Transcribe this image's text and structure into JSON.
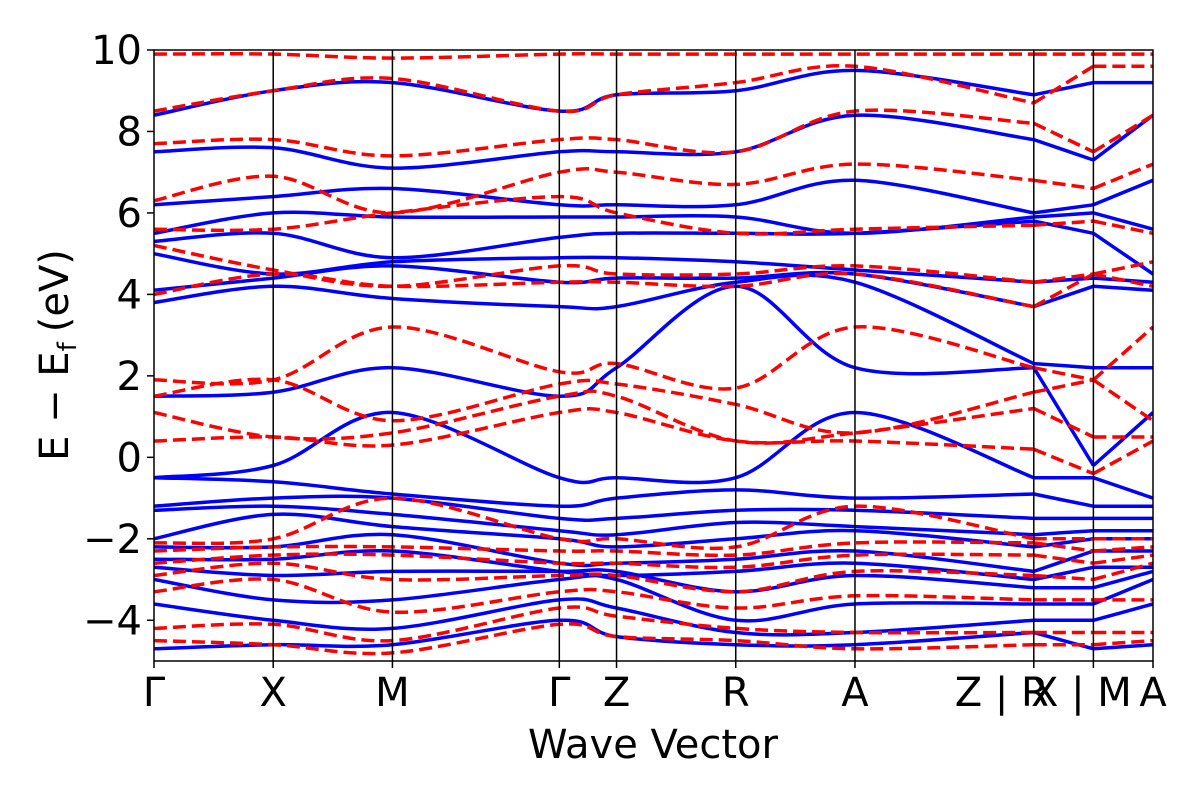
{
  "chart_data": {
    "type": "line",
    "xlabel": "Wave Vector",
    "ylabel": "E − E",
    "ylabel_subscript": "f",
    "ylabel_unit": "(eV)",
    "ylim": [
      -5,
      10
    ],
    "yticks": [
      -4,
      -2,
      0,
      2,
      4,
      6,
      8,
      10
    ],
    "ytick_labels": [
      "−4",
      "−2",
      "0",
      "2",
      "4",
      "6",
      "8",
      "10"
    ],
    "x": [
      0,
      1,
      2,
      3.4,
      3.88,
      4.88,
      5.88,
      7.38,
      7.88,
      8.38
    ],
    "xlim": [
      0,
      8.38
    ],
    "kpoint_labels": [
      "Γ",
      "X",
      "M",
      "Γ",
      "Z",
      "R",
      "A",
      "Z | R",
      "X | M",
      "A"
    ],
    "segment_breaks": [
      7.38,
      7.88
    ],
    "grid": false,
    "series": [
      {
        "line_style": "solid",
        "color": "#0000ff",
        "bands": [
          [
            -4.7,
            -4.6,
            -4.6,
            -4.0,
            -4.4,
            -4.6,
            -4.6,
            -4.3,
            -4.7,
            -4.6
          ],
          [
            -3.6,
            -4.0,
            -4.2,
            -3.5,
            -3.7,
            -4.3,
            -4.3,
            -4.0,
            -4.0,
            -3.6
          ],
          [
            -3.0,
            -3.5,
            -3.5,
            -3.0,
            -3.0,
            -4.0,
            -3.6,
            -3.6,
            -3.6,
            -3.0
          ],
          [
            -2.7,
            -2.9,
            -2.8,
            -2.8,
            -2.8,
            -3.3,
            -2.9,
            -3.2,
            -3.2,
            -2.8
          ],
          [
            -2.5,
            -2.5,
            -2.3,
            -2.8,
            -2.9,
            -2.8,
            -2.6,
            -3.0,
            -2.7,
            -2.7
          ],
          [
            -2.2,
            -2.2,
            -1.9,
            -2.6,
            -2.6,
            -2.5,
            -2.3,
            -2.8,
            -2.3,
            -2.3
          ],
          [
            -2.0,
            -1.4,
            -1.7,
            -2.0,
            -2.2,
            -2.0,
            -1.8,
            -2.2,
            -2.0,
            -2.0
          ],
          [
            -1.3,
            -1.2,
            -1.4,
            -1.8,
            -1.9,
            -1.6,
            -1.7,
            -1.9,
            -1.8,
            -1.8
          ],
          [
            -1.2,
            -1.0,
            -1.0,
            -1.5,
            -1.5,
            -1.3,
            -1.3,
            -1.5,
            -1.5,
            -1.5
          ],
          [
            -0.5,
            -0.6,
            -0.9,
            -1.2,
            -1.0,
            -0.8,
            -1.0,
            -0.9,
            -1.2,
            -1.2
          ],
          [
            -0.5,
            -0.2,
            1.1,
            -0.5,
            -0.5,
            -0.5,
            1.1,
            -0.5,
            -0.5,
            -1.0
          ],
          [
            1.5,
            1.6,
            2.2,
            1.5,
            2.2,
            4.2,
            2.2,
            2.2,
            -0.2,
            1.1
          ],
          [
            3.8,
            4.2,
            3.9,
            3.7,
            3.7,
            4.3,
            4.3,
            2.3,
            2.2,
            2.2
          ],
          [
            4.1,
            4.4,
            4.7,
            4.3,
            4.4,
            4.4,
            4.5,
            3.7,
            4.2,
            4.1
          ],
          [
            5.0,
            4.5,
            4.8,
            4.9,
            4.9,
            4.8,
            4.6,
            4.3,
            4.4,
            4.3
          ],
          [
            5.3,
            5.5,
            4.9,
            5.4,
            5.5,
            5.5,
            5.5,
            5.8,
            5.5,
            4.5
          ],
          [
            5.5,
            6.0,
            5.9,
            5.9,
            5.9,
            5.9,
            5.5,
            5.9,
            6.0,
            5.6
          ],
          [
            6.2,
            6.4,
            6.6,
            6.2,
            6.2,
            6.2,
            6.8,
            6.0,
            6.2,
            6.8
          ],
          [
            7.5,
            7.6,
            7.1,
            7.5,
            7.5,
            7.5,
            8.4,
            7.8,
            7.3,
            8.4
          ],
          [
            8.4,
            9.0,
            9.2,
            8.5,
            8.9,
            9.0,
            9.5,
            8.9,
            9.2,
            9.2
          ]
        ]
      },
      {
        "line_style": "dashed",
        "color": "#ff0000",
        "bands": [
          [
            -4.5,
            -4.6,
            -4.8,
            -4.1,
            -4.4,
            -4.5,
            -4.7,
            -4.6,
            -4.6,
            -4.5
          ],
          [
            -4.2,
            -4.1,
            -4.5,
            -3.7,
            -3.9,
            -4.2,
            -4.3,
            -4.3,
            -4.3,
            -4.3
          ],
          [
            -3.3,
            -3.0,
            -3.8,
            -3.3,
            -3.3,
            -3.7,
            -3.4,
            -3.5,
            -3.5,
            -3.5
          ],
          [
            -2.9,
            -2.6,
            -3.0,
            -2.9,
            -2.9,
            -3.3,
            -2.8,
            -2.9,
            -3.0,
            -2.6
          ],
          [
            -2.6,
            -2.4,
            -2.4,
            -2.6,
            -2.6,
            -2.7,
            -2.4,
            -2.4,
            -2.6,
            -2.4
          ],
          [
            -2.3,
            -2.2,
            -2.2,
            -2.3,
            -2.3,
            -2.4,
            -2.1,
            -2.1,
            -2.3,
            -2.2
          ],
          [
            -2.1,
            -2.0,
            -1.0,
            -2.0,
            -2.0,
            -2.2,
            -1.2,
            -2.0,
            -2.0,
            -2.0
          ],
          [
            0.4,
            0.5,
            0.3,
            1.1,
            1.1,
            0.4,
            0.4,
            0.2,
            -0.4,
            0.4
          ],
          [
            1.1,
            0.5,
            0.6,
            1.5,
            1.5,
            0.4,
            0.6,
            1.2,
            0.5,
            0.5
          ],
          [
            1.5,
            1.9,
            0.9,
            1.8,
            1.8,
            1.3,
            0.6,
            1.6,
            1.9,
            0.9
          ],
          [
            1.9,
            1.9,
            3.2,
            2.1,
            2.3,
            1.7,
            3.2,
            2.2,
            1.9,
            3.2
          ],
          [
            4.0,
            4.5,
            4.2,
            4.3,
            4.3,
            4.2,
            4.5,
            3.7,
            4.5,
            4.2
          ],
          [
            5.2,
            4.6,
            4.2,
            4.7,
            4.5,
            4.5,
            4.7,
            4.3,
            4.5,
            4.8
          ],
          [
            5.6,
            5.6,
            6.0,
            6.4,
            6.0,
            5.5,
            5.6,
            5.7,
            5.8,
            5.5
          ],
          [
            6.3,
            6.9,
            6.0,
            7.0,
            7.0,
            6.7,
            7.2,
            6.8,
            6.6,
            7.2
          ],
          [
            7.7,
            7.8,
            7.4,
            7.8,
            7.8,
            7.5,
            8.5,
            8.2,
            7.5,
            8.4
          ],
          [
            8.5,
            9.0,
            9.3,
            8.5,
            8.9,
            9.2,
            9.6,
            8.7,
            9.6,
            9.6
          ],
          [
            9.9,
            9.9,
            9.8,
            9.9,
            9.9,
            9.9,
            9.9,
            9.9,
            9.9,
            9.9
          ]
        ]
      }
    ]
  }
}
